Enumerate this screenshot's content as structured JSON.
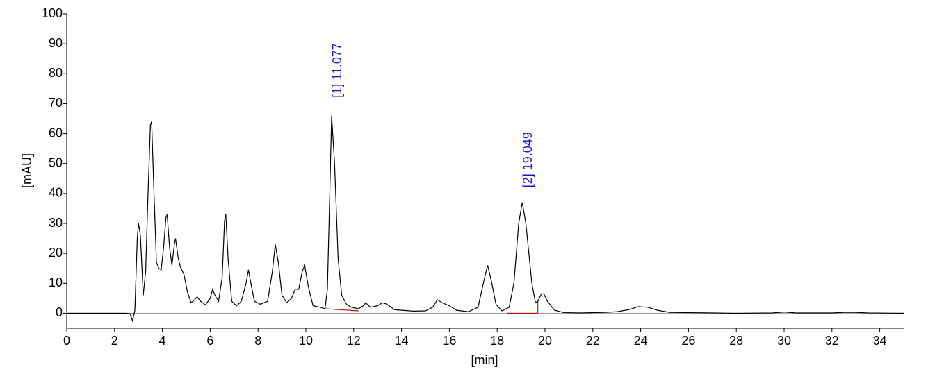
{
  "chart_data": {
    "type": "line",
    "xlabel": "[min]",
    "ylabel": "[mAU]",
    "xlim": [
      0,
      35
    ],
    "ylim": [
      -5,
      100
    ],
    "xticks": [
      0,
      2,
      4,
      6,
      8,
      10,
      12,
      14,
      16,
      18,
      20,
      22,
      24,
      26,
      28,
      30,
      32,
      34
    ],
    "yticks": [
      0,
      10,
      20,
      30,
      40,
      50,
      60,
      70,
      80,
      90,
      100
    ],
    "series": [
      {
        "color": "#000000",
        "x": [
          0,
          2.5,
          2.65,
          2.75,
          2.85,
          2.95,
          3.0,
          3.08,
          3.2,
          3.3,
          3.4,
          3.5,
          3.55,
          3.65,
          3.75,
          3.85,
          3.95,
          4.05,
          4.15,
          4.2,
          4.3,
          4.4,
          4.5,
          4.55,
          4.65,
          4.75,
          4.9,
          5.05,
          5.2,
          5.35,
          5.45,
          5.6,
          5.8,
          6.0,
          6.1,
          6.2,
          6.35,
          6.5,
          6.6,
          6.65,
          6.75,
          6.9,
          7.1,
          7.3,
          7.5,
          7.6,
          7.7,
          7.85,
          8.1,
          8.4,
          8.6,
          8.72,
          8.85,
          9.0,
          9.2,
          9.4,
          9.55,
          9.7,
          9.85,
          9.95,
          10.1,
          10.3,
          10.6,
          10.8,
          10.9,
          11.0,
          11.077,
          11.2,
          11.35,
          11.5,
          11.7,
          11.9,
          12.2,
          12.4,
          12.5,
          12.7,
          13.0,
          13.2,
          13.4,
          13.7,
          14.0,
          14.5,
          15.0,
          15.3,
          15.5,
          15.7,
          16.0,
          16.3,
          16.8,
          17.2,
          17.45,
          17.6,
          17.75,
          17.95,
          18.2,
          18.5,
          18.7,
          18.9,
          19.049,
          19.2,
          19.45,
          19.6,
          19.7,
          19.85,
          19.95,
          20.1,
          20.4,
          20.8,
          21.5,
          22.5,
          23.0,
          23.5,
          23.9,
          24.3,
          24.7,
          25.2,
          26,
          28,
          29.5,
          30,
          30.5,
          32,
          32.5,
          33,
          33.5,
          35
        ],
        "values": [
          0,
          0,
          -0.2,
          -2.5,
          1,
          25,
          30,
          26,
          6,
          14,
          40,
          63,
          64,
          40,
          17,
          15,
          14.5,
          22,
          32,
          33,
          22,
          16,
          23,
          25,
          19,
          15.5,
          13,
          7,
          3.5,
          4.5,
          5.5,
          4,
          2.8,
          5,
          8,
          6,
          4,
          12,
          31,
          33,
          18,
          4,
          2.5,
          4,
          10,
          14.5,
          10,
          4,
          3,
          4,
          14,
          23,
          17,
          6,
          3.5,
          5,
          8,
          8,
          14,
          16,
          9,
          2.5,
          2,
          1.5,
          8,
          40,
          66,
          50,
          18,
          6,
          3,
          2,
          1.5,
          2.5,
          3.5,
          2,
          2.5,
          3.5,
          3,
          1.2,
          1,
          0.7,
          0.8,
          2,
          4.5,
          3.5,
          2.5,
          1,
          0.5,
          2,
          11,
          16,
          11,
          3,
          0.8,
          2,
          10,
          30,
          37,
          30,
          10,
          3.5,
          4,
          6.5,
          6.5,
          4,
          1,
          0.2,
          0.1,
          0.3,
          0.5,
          1.2,
          2.2,
          2,
          1,
          0.3,
          0.2,
          0,
          0.1,
          0.4,
          0.1,
          0.1,
          0.3,
          0.3,
          0.1,
          0
        ]
      }
    ],
    "baselines": [
      {
        "color": "#cc0000",
        "x": [
          10.8,
          12.2
        ],
        "values": [
          1.5,
          0.8
        ]
      },
      {
        "color": "#cc0000",
        "x": [
          18.4,
          19.7
        ],
        "values": [
          0,
          0
        ]
      },
      {
        "color": "#008000",
        "x": [
          19.7,
          19.7
        ],
        "values": [
          0,
          4
        ]
      }
    ],
    "annotations": [
      {
        "text": "[1]  11.077",
        "x": 11.077,
        "y": 72,
        "color": "#1a1acc"
      },
      {
        "text": "[2]  19.049",
        "x": 19.049,
        "y": 42,
        "color": "#1a1acc"
      }
    ]
  }
}
